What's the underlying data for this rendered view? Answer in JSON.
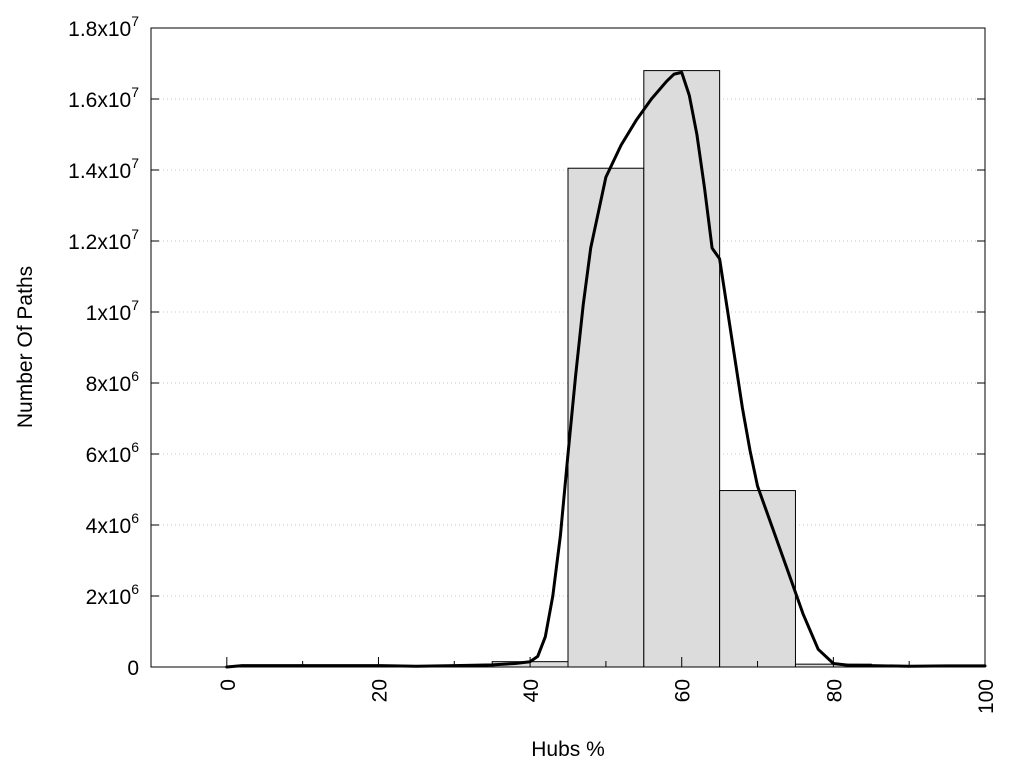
{
  "chart_data": {
    "type": "bar",
    "title": "",
    "xlabel": "Hubs %",
    "ylabel": "Number Of Paths",
    "xlim": [
      -10,
      100
    ],
    "ylim": [
      0,
      18000000
    ],
    "grid": "horizontal dotted",
    "x_ticks": [
      0,
      20,
      40,
      60,
      80,
      100
    ],
    "y_ticks": [
      {
        "value": 0,
        "mantissa": "0",
        "exp": ""
      },
      {
        "value": 2000000,
        "mantissa": "2x10",
        "exp": "6"
      },
      {
        "value": 4000000,
        "mantissa": "4x10",
        "exp": "6"
      },
      {
        "value": 6000000,
        "mantissa": "6x10",
        "exp": "6"
      },
      {
        "value": 8000000,
        "mantissa": "8x10",
        "exp": "6"
      },
      {
        "value": 10000000,
        "mantissa": "1x10",
        "exp": "7"
      },
      {
        "value": 12000000,
        "mantissa": "1.2x10",
        "exp": "7"
      },
      {
        "value": 14000000,
        "mantissa": "1.4x10",
        "exp": "7"
      },
      {
        "value": 16000000,
        "mantissa": "1.6x10",
        "exp": "7"
      },
      {
        "value": 18000000,
        "mantissa": "1.8x10",
        "exp": "7"
      }
    ],
    "bins": [
      {
        "x0": 35,
        "x1": 45,
        "value": 150000
      },
      {
        "x0": 45,
        "x1": 55,
        "value": 14050000
      },
      {
        "x0": 55,
        "x1": 65,
        "value": 16800000
      },
      {
        "x0": 65,
        "x1": 75,
        "value": 4970000
      },
      {
        "x0": 75,
        "x1": 85,
        "value": 80000
      }
    ],
    "curve": [
      [
        0,
        0
      ],
      [
        2,
        40000
      ],
      [
        10,
        40000
      ],
      [
        20,
        40000
      ],
      [
        25,
        20000
      ],
      [
        30,
        40000
      ],
      [
        35,
        60000
      ],
      [
        38,
        100000
      ],
      [
        40,
        150000
      ],
      [
        41,
        300000
      ],
      [
        42,
        850000
      ],
      [
        43,
        2000000
      ],
      [
        44,
        3700000
      ],
      [
        45,
        6000000
      ],
      [
        46,
        8200000
      ],
      [
        47,
        10200000
      ],
      [
        48,
        11800000
      ],
      [
        49,
        12800000
      ],
      [
        50,
        13800000
      ],
      [
        52,
        14700000
      ],
      [
        54,
        15400000
      ],
      [
        56,
        16000000
      ],
      [
        58,
        16500000
      ],
      [
        59,
        16700000
      ],
      [
        60,
        16750000
      ],
      [
        61,
        16100000
      ],
      [
        62,
        15000000
      ],
      [
        63,
        13500000
      ],
      [
        64,
        11800000
      ],
      [
        65,
        11500000
      ],
      [
        66,
        10100000
      ],
      [
        67,
        8700000
      ],
      [
        68,
        7300000
      ],
      [
        69,
        6100000
      ],
      [
        70,
        5100000
      ],
      [
        72,
        3900000
      ],
      [
        74,
        2700000
      ],
      [
        76,
        1500000
      ],
      [
        78,
        500000
      ],
      [
        80,
        100000
      ],
      [
        82,
        50000
      ],
      [
        85,
        40000
      ],
      [
        90,
        20000
      ],
      [
        95,
        30000
      ],
      [
        100,
        30000
      ]
    ]
  }
}
